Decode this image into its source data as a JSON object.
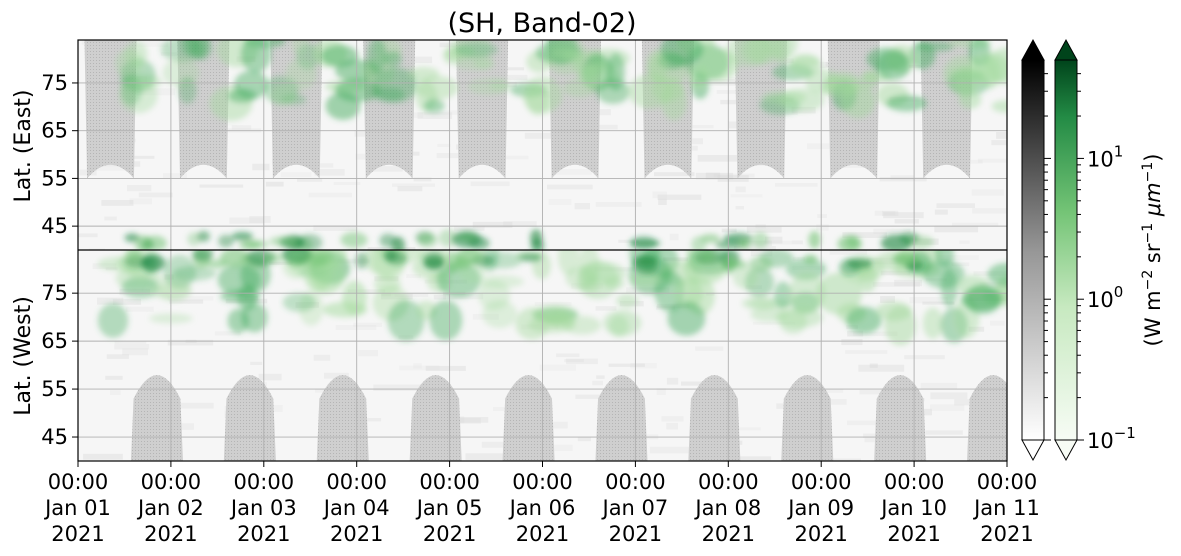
{
  "chart_data": {
    "type": "heatmap",
    "title": "(SH, Band-02)",
    "x_ticks": [
      {
        "time": "00:00",
        "date": "Jan 01",
        "year": "2021"
      },
      {
        "time": "00:00",
        "date": "Jan 02",
        "year": "2021"
      },
      {
        "time": "00:00",
        "date": "Jan 03",
        "year": "2021"
      },
      {
        "time": "00:00",
        "date": "Jan 04",
        "year": "2021"
      },
      {
        "time": "00:00",
        "date": "Jan 05",
        "year": "2021"
      },
      {
        "time": "00:00",
        "date": "Jan 06",
        "year": "2021"
      },
      {
        "time": "00:00",
        "date": "Jan 07",
        "year": "2021"
      },
      {
        "time": "00:00",
        "date": "Jan 08",
        "year": "2021"
      },
      {
        "time": "00:00",
        "date": "Jan 09",
        "year": "2021"
      },
      {
        "time": "00:00",
        "date": "Jan 10",
        "year": "2021"
      },
      {
        "time": "00:00",
        "date": "Jan 11",
        "year": "2021"
      }
    ],
    "xlim": [
      "2021-01-01 00:00",
      "2021-01-11 00:00"
    ],
    "panels": [
      {
        "ylabel": "Lat. (East)",
        "yticks": [
          "45",
          "55",
          "65",
          "75"
        ],
        "ylim": [
          40,
          84
        ]
      },
      {
        "ylabel": "Lat. (West)",
        "yticks": [
          "75",
          "65",
          "55",
          "45"
        ],
        "ylim": [
          84,
          40
        ]
      }
    ],
    "grid": true,
    "colorbars": [
      {
        "name": "night",
        "colormap": "Greys",
        "extend": "both"
      },
      {
        "name": "day",
        "colormap": "Greens",
        "extend": "both",
        "label": "(W m$^{-2}$ sr$^{-1}$ μm$^{-1}$)",
        "ticks": [
          {
            "base": "10",
            "exp": "−1",
            "value": 0.1
          },
          {
            "base": "10",
            "exp": "0",
            "value": 1
          },
          {
            "base": "10",
            "exp": "1",
            "value": 10
          }
        ],
        "range": [
          0.1,
          50
        ],
        "scale": "log"
      }
    ],
    "colorbar_label_parts": {
      "prefix": "(W m",
      "e1": "−2",
      "mid": " sr",
      "e2": "−1",
      "mu": " μm",
      "e3": "−1",
      "suffix": ")"
    },
    "colors": {
      "green_light": "#e5f5e0",
      "green_mid": "#74c476",
      "green_dark": "#00441b",
      "grey_mask": "#c8c8c8"
    },
    "daylight_mask_centers_days": {
      "east": [
        0.35,
        1.35,
        2.35,
        3.35,
        4.35,
        5.35,
        6.35,
        7.35,
        8.35,
        9.35
      ],
      "west": [
        0.85,
        1.85,
        2.85,
        3.85,
        4.85,
        5.85,
        6.85,
        7.85,
        8.85,
        9.85
      ]
    },
    "aurora_centers_days": [
      0.5,
      1.2,
      1.8,
      2.4,
      2.8,
      3.4,
      3.9,
      4.4,
      5.0,
      5.4,
      5.7,
      6.3,
      6.7,
      7.4,
      7.8,
      8.4,
      8.9,
      9.4,
      9.8
    ]
  }
}
